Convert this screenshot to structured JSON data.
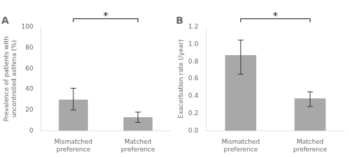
{
  "chart_data": [
    {
      "type": "bar",
      "title": "A",
      "categories": [
        "Mismatched\npreference",
        "Matched\npreference"
      ],
      "values": [
        30,
        13
      ],
      "errors_low": [
        10,
        5
      ],
      "errors_high": [
        11,
        5
      ],
      "ylabel": "Prevalence of patients with\nuncontrolled asthma (%)",
      "ylim": [
        0,
        100
      ],
      "yticks": [
        0,
        20,
        40,
        60,
        80,
        100
      ],
      "color": "#a8a8a8",
      "grid": false,
      "annotations": [
        "*"
      ]
    },
    {
      "type": "bar",
      "title": "B",
      "categories": [
        "Mismatched\npreference",
        "Matched\npreference"
      ],
      "values": [
        0.875,
        0.375
      ],
      "errors_low": [
        0.22,
        0.095
      ],
      "errors_high": [
        0.175,
        0.075
      ],
      "ylabel": "Exacerbation rate (/year)",
      "ylim": [
        0,
        1.2
      ],
      "yticks": [
        {
          "value": 0,
          "label": "0.0"
        },
        0.2,
        0.4,
        0.6,
        0.8,
        {
          "value": 1.0,
          "label": "1.0"
        },
        1.2
      ],
      "color": "#a8a8a8",
      "grid": false,
      "annotations": [
        "*"
      ]
    }
  ]
}
